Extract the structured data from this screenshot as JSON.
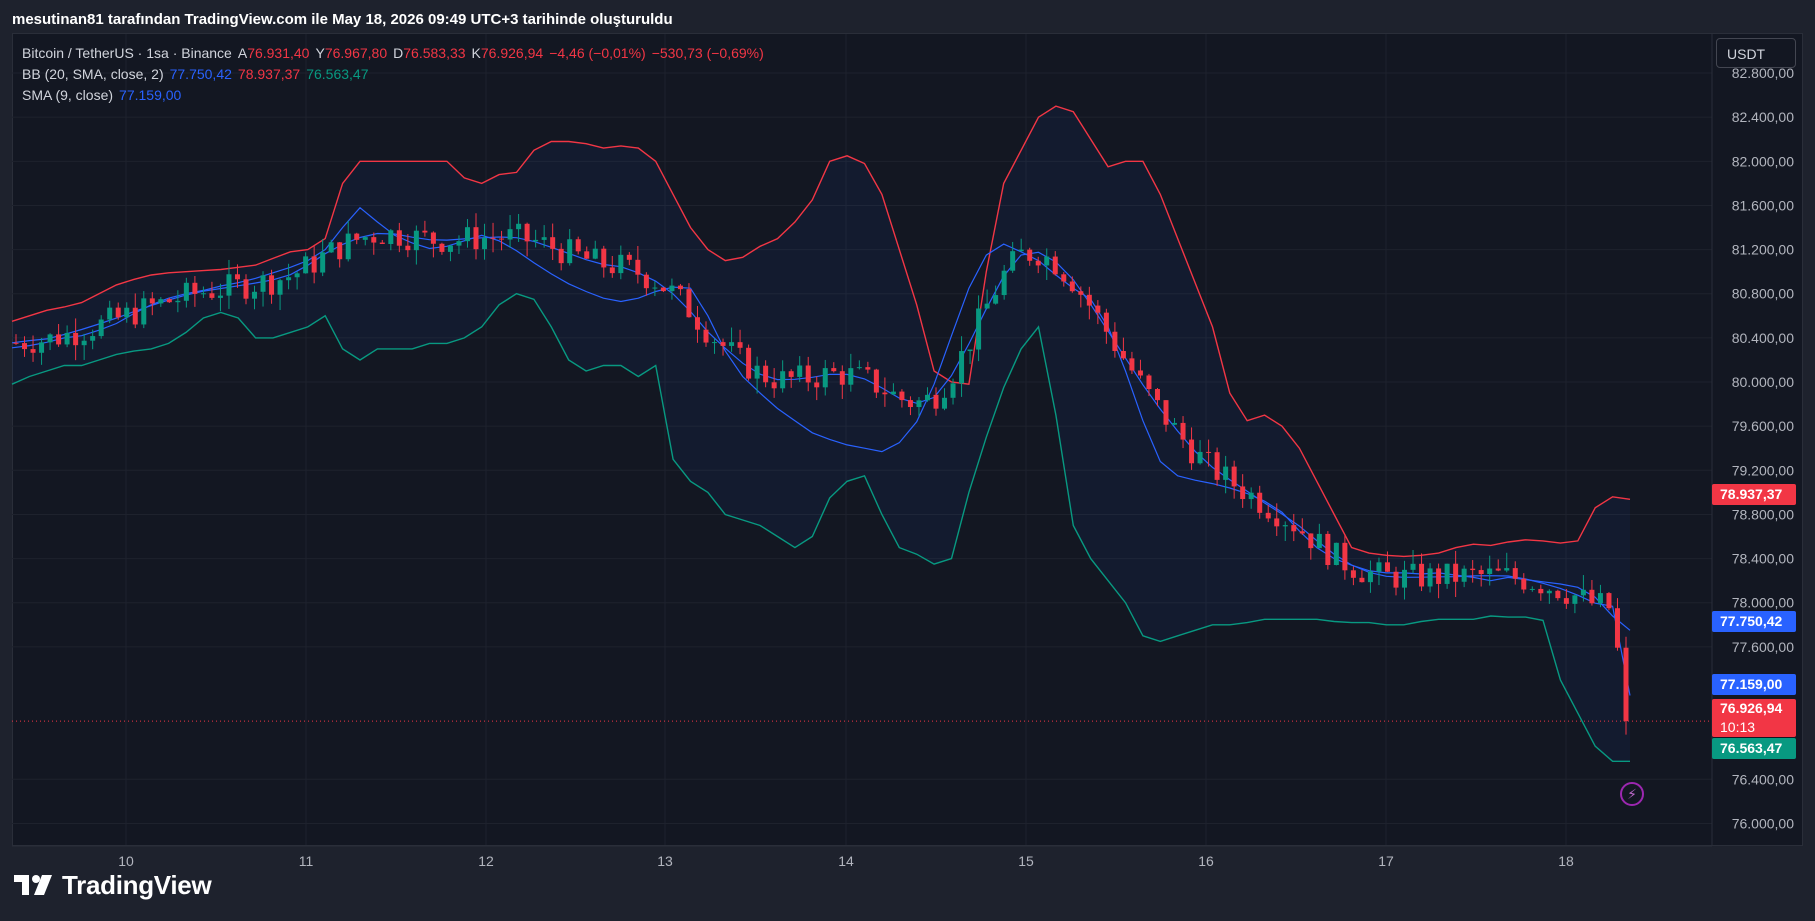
{
  "header": {
    "credit": "mesutinan81 tarafından TradingView.com ile May 18, 2026 09:49 UTC+3 tarihinde oluşturuldu"
  },
  "legend": {
    "symbol": "Bitcoin / TetherUS · 1sa · Binance",
    "open_label": "A",
    "open": "76.931,40",
    "high_label": "Y",
    "high": "76.967,80",
    "low_label": "D",
    "low": "76.583,33",
    "close_label": "K",
    "close": "76.926,94",
    "change": "−4,46 (−0,01%)",
    "change2": "−530,73 (−0,69%)",
    "bb_label": "BB (20, SMA, close, 2)",
    "bb_basis": "77.750,42",
    "bb_upper": "78.937,37",
    "bb_lower": "76.563,47",
    "sma_label": "SMA (9, close)",
    "sma_value": "77.159,00"
  },
  "currency": "USDT",
  "price_tags": {
    "bb_upper": "78.937,37",
    "bb_basis": "77.750,42",
    "sma": "77.159,00",
    "last": "76.926,94",
    "countdown": "10:13",
    "bb_lower": "76.563,47"
  },
  "brand": "TradingView",
  "colors": {
    "up": "#089981",
    "down": "#f23645",
    "basis": "#2962ff",
    "upper": "#f23645",
    "lower": "#089981",
    "sma": "#2962ff"
  },
  "chart_data": {
    "type": "line",
    "title": "Bitcoin / TetherUS · 1sa · Binance",
    "y_ticks": [
      82800,
      82400,
      82000,
      81600,
      81200,
      80800,
      80400,
      80000,
      79600,
      79200,
      78800,
      78400,
      78000,
      77600,
      76400,
      76000
    ],
    "y_tick_labels": [
      "82.800,00",
      "82.400,00",
      "82.000,00",
      "81.600,00",
      "81.200,00",
      "80.800,00",
      "80.400,00",
      "80.000,00",
      "79.600,00",
      "79.200,00",
      "78.800,00",
      "78.400,00",
      "78.000,00",
      "77.600,00",
      "76.400,00",
      "76.000,00"
    ],
    "ylim": [
      75850,
      82900
    ],
    "x_ticks": [
      "10",
      "11",
      "12",
      "13",
      "14",
      "15",
      "16",
      "17",
      "18"
    ],
    "series": [
      {
        "name": "BB (20, SMA, close, 2)",
        "values": [
          [
            80310,
            80330,
            80360,
            80400,
            80420,
            80470,
            80530,
            80620,
            80700,
            80760,
            80800,
            80830,
            80870,
            80900,
            80940,
            80990,
            81040,
            81100,
            81200,
            81400,
            81580,
            81450,
            81330,
            81260,
            81210,
            81230,
            81280,
            81330,
            81280,
            81190,
            81080,
            80980,
            80890,
            80820,
            80760,
            80730,
            80760,
            80820,
            80860,
            80850,
            80600,
            80280,
            80050,
            79900,
            79760,
            79650,
            79540,
            79480,
            79430,
            79400,
            79370,
            79450,
            79640,
            79980,
            80420,
            80850,
            81150,
            81250,
            81180,
            81100,
            80970,
            80850,
            80750,
            80500,
            80100,
            79650,
            79280,
            79150,
            79110,
            79080,
            79040,
            78990,
            78920,
            78820,
            78650,
            78500,
            78400,
            78340,
            78290,
            78270,
            78270,
            78260,
            78270,
            78250,
            78230,
            78200,
            78230,
            78210,
            78190,
            78170,
            78140,
            78050,
            77880,
            77750
          ],
          [
            80550,
            80600,
            80650,
            80680,
            80720,
            80800,
            80880,
            80930,
            80970,
            80990,
            81000,
            81010,
            81020,
            81040,
            81060,
            81120,
            81180,
            81200,
            81300,
            81800,
            82000,
            82000,
            82000,
            82000,
            82000,
            82000,
            81850,
            81800,
            81880,
            81900,
            82100,
            82180,
            82180,
            82160,
            82120,
            82140,
            82120,
            82000,
            81700,
            81400,
            81200,
            81100,
            81130,
            81230,
            81300,
            81450,
            81650,
            82000,
            82050,
            81980,
            81700,
            81200,
            80700,
            80100,
            80000,
            79980,
            81000,
            81800,
            82100,
            82400,
            82500,
            82450,
            82200,
            81950,
            82000,
            82000,
            81700,
            81300,
            80900,
            80500,
            79900,
            79650,
            79700,
            79600,
            79400,
            79100,
            78800,
            78500,
            78450,
            78430,
            78420,
            78430,
            78450,
            78500,
            78530,
            78520,
            78550,
            78570,
            78560,
            78540,
            78560,
            78860,
            78960,
            78937
          ],
          [
            79980,
            80050,
            80100,
            80150,
            80150,
            80200,
            80250,
            80280,
            80300,
            80350,
            80450,
            80580,
            80630,
            80580,
            80400,
            80400,
            80450,
            80500,
            80600,
            80300,
            80200,
            80300,
            80300,
            80300,
            80350,
            80350,
            80400,
            80500,
            80700,
            80800,
            80750,
            80500,
            80200,
            80100,
            80150,
            80150,
            80050,
            80150,
            79300,
            79100,
            79000,
            78800,
            78750,
            78700,
            78600,
            78500,
            78600,
            78950,
            79100,
            79150,
            78800,
            78500,
            78440,
            78350,
            78400,
            79000,
            79500,
            79950,
            80300,
            80500,
            79700,
            78700,
            78400,
            78200,
            78000,
            77700,
            77650,
            77700,
            77750,
            77800,
            77800,
            77820,
            77850,
            77850,
            77850,
            77850,
            77830,
            77820,
            77820,
            77800,
            77800,
            77830,
            77850,
            77850,
            77850,
            77880,
            77870,
            77870,
            77840,
            77300,
            77000,
            76700,
            76563,
            76563
          ]
        ]
      }
    ]
  }
}
